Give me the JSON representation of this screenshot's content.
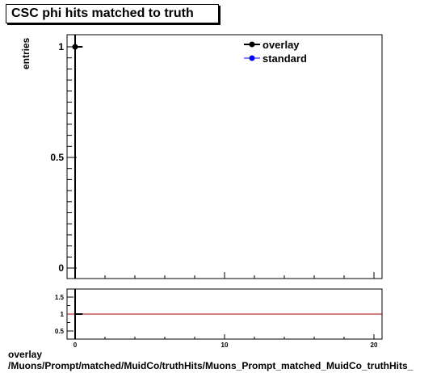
{
  "chart_data": {
    "type": "scatter",
    "title": "CSC phi hits matched to truth",
    "ylabel": "entries",
    "xlim": [
      0,
      20
    ],
    "ylim": [
      0,
      1
    ],
    "x_ticks": [
      "0",
      "10",
      "20"
    ],
    "y_ticks": [
      "0",
      "0.5",
      "1"
    ],
    "series": [
      {
        "name": "overlay",
        "color": "#000000",
        "points": [
          {
            "x": 0,
            "y": 1
          }
        ]
      },
      {
        "name": "standard",
        "color": "#0000ff",
        "points": []
      }
    ],
    "legend_position": "top-right",
    "ratio": {
      "ylim": [
        0.3,
        1.7
      ],
      "y_ticks": [
        "0.5",
        "1",
        "1.5"
      ],
      "reference_line": 1,
      "reference_color": "#aa0000",
      "points": [
        {
          "x": 0,
          "y": 1
        }
      ]
    }
  },
  "footer": {
    "label": "overlay",
    "path": "/Muons/Prompt/matched/MuidCo/truthHits/Muons_Prompt_matched_MuidCo_truthHits_"
  }
}
